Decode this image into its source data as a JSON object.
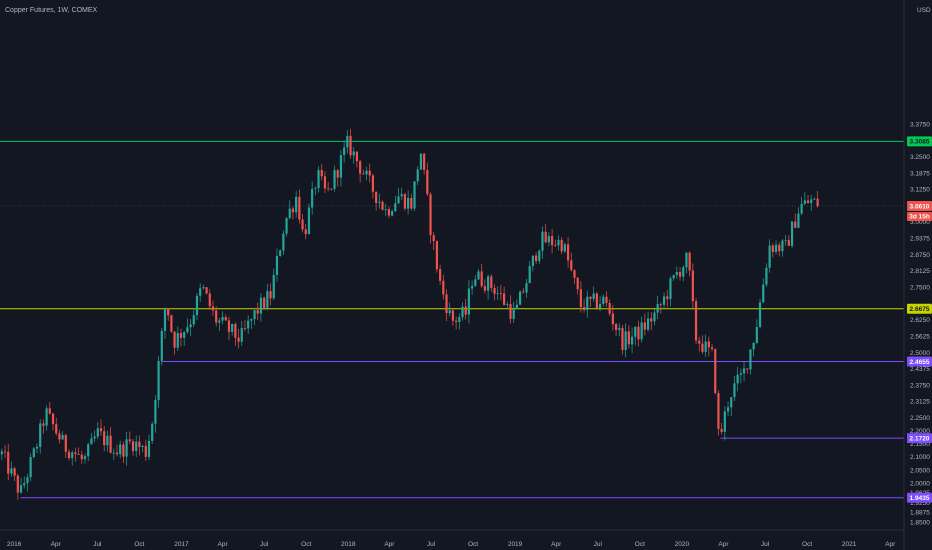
{
  "chart_title": "Copper Futures, 1W, COMEX",
  "currency": "USD",
  "colors": {
    "background": "#131722",
    "up": "#26a69a",
    "down": "#ef5350",
    "text": "#b2b5be",
    "axis_line": "#2a2e39",
    "green_level": "#00c853",
    "yellow_level": "#c8d400",
    "purple_level": "#7c4dff",
    "current_price": "#ef5350"
  },
  "chart_data": {
    "type": "candlestick",
    "title": "Copper Futures, 1W, COMEX",
    "ylim": [
      1.82,
      3.85
    ],
    "xlim": [
      "2015-12-01",
      "2021-05-01"
    ],
    "x_ticks": [
      "2016",
      "Apr",
      "Jul",
      "Oct",
      "2017",
      "Apr",
      "Jul",
      "Oct",
      "2018",
      "Apr",
      "Jul",
      "Oct",
      "2019",
      "Apr",
      "Jul",
      "Oct",
      "2020",
      "Apr",
      "Jul",
      "Oct",
      "2021",
      "Apr"
    ],
    "x_tick_dates": [
      "2016-01-01",
      "2016-04-01",
      "2016-07-01",
      "2016-10-01",
      "2017-01-01",
      "2017-04-01",
      "2017-07-01",
      "2017-10-01",
      "2018-01-01",
      "2018-04-01",
      "2018-07-01",
      "2018-10-01",
      "2019-01-01",
      "2019-04-01",
      "2019-07-01",
      "2019-10-01",
      "2020-01-01",
      "2020-04-01",
      "2020-07-01",
      "2020-10-01",
      "2021-01-01",
      "2021-04-01"
    ],
    "y_ticks": [
      "3.3750",
      "3.2500",
      "3.1875",
      "3.1250",
      "3.0000",
      "2.9375",
      "2.8750",
      "2.8125",
      "2.7500",
      "2.6250",
      "2.5625",
      "2.5000",
      "2.4375",
      "2.3750",
      "2.3125",
      "2.2500",
      "2.2000",
      "2.1500",
      "2.1000",
      "2.0500",
      "2.0000",
      "1.9625",
      "1.9250",
      "1.8875",
      "1.8500"
    ],
    "y_tick_values": [
      3.375,
      3.25,
      3.1875,
      3.125,
      3.0,
      2.9375,
      2.875,
      2.8125,
      2.75,
      2.625,
      2.5625,
      2.5,
      2.4375,
      2.375,
      2.3125,
      2.25,
      2.2,
      2.15,
      2.1,
      2.05,
      2.0,
      1.9625,
      1.925,
      1.8875,
      1.85
    ],
    "horizontal_levels": [
      {
        "value": 3.3085,
        "label": "3.3085",
        "color": "green",
        "start": "2015-12-01"
      },
      {
        "value": 2.6675,
        "label": "2.6675",
        "color": "yellow",
        "start": "2015-12-01"
      },
      {
        "value": 2.4655,
        "label": "2.4655",
        "color": "purple",
        "start": "2016-11-20"
      },
      {
        "value": 2.172,
        "label": "2.1720",
        "color": "purple",
        "start": "2020-03-25"
      },
      {
        "value": 1.9435,
        "label": "1.9435",
        "color": "purple",
        "start": "2016-01-15"
      }
    ],
    "current_price": {
      "value": 3.061,
      "label": "3.0610",
      "countdown": "3d 15h"
    },
    "anchors": [
      [
        "2015-12-05",
        2.11
      ],
      [
        "2016-01-15",
        1.96
      ],
      [
        "2016-02-15",
        2.12
      ],
      [
        "2016-03-10",
        2.27
      ],
      [
        "2016-04-20",
        2.14
      ],
      [
        "2016-05-10",
        2.12
      ],
      [
        "2016-06-01",
        2.08
      ],
      [
        "2016-07-01",
        2.19
      ],
      [
        "2016-08-15",
        2.12
      ],
      [
        "2016-09-15",
        2.16
      ],
      [
        "2016-10-15",
        2.12
      ],
      [
        "2016-10-28",
        2.22
      ],
      [
        "2016-11-15",
        2.5
      ],
      [
        "2016-11-28",
        2.7
      ],
      [
        "2016-12-15",
        2.54
      ],
      [
        "2017-01-20",
        2.62
      ],
      [
        "2017-02-15",
        2.75
      ],
      [
        "2017-03-15",
        2.63
      ],
      [
        "2017-05-10",
        2.55
      ],
      [
        "2017-06-15",
        2.66
      ],
      [
        "2017-07-15",
        2.72
      ],
      [
        "2017-08-15",
        3.0
      ],
      [
        "2017-09-10",
        3.1
      ],
      [
        "2017-09-25",
        2.94
      ],
      [
        "2017-10-25",
        3.18
      ],
      [
        "2017-11-15",
        3.1
      ],
      [
        "2017-12-31",
        3.3
      ],
      [
        "2018-02-15",
        3.15
      ],
      [
        "2018-03-25",
        3.04
      ],
      [
        "2018-04-20",
        3.1
      ],
      [
        "2018-05-20",
        3.07
      ],
      [
        "2018-06-08",
        3.28
      ],
      [
        "2018-06-30",
        2.98
      ],
      [
        "2018-07-20",
        2.77
      ],
      [
        "2018-08-15",
        2.62
      ],
      [
        "2018-09-15",
        2.65
      ],
      [
        "2018-10-01",
        2.8
      ],
      [
        "2018-11-15",
        2.75
      ],
      [
        "2018-12-31",
        2.64
      ],
      [
        "2019-02-25",
        2.93
      ],
      [
        "2019-04-15",
        2.92
      ],
      [
        "2019-05-25",
        2.68
      ],
      [
        "2019-07-15",
        2.7
      ],
      [
        "2019-08-25",
        2.54
      ],
      [
        "2019-10-01",
        2.58
      ],
      [
        "2019-11-10",
        2.66
      ],
      [
        "2019-12-20",
        2.8
      ],
      [
        "2020-01-14",
        2.86
      ],
      [
        "2020-01-31",
        2.56
      ],
      [
        "2020-03-10",
        2.48
      ],
      [
        "2020-03-22",
        2.16
      ],
      [
        "2020-04-15",
        2.34
      ],
      [
        "2020-05-15",
        2.42
      ],
      [
        "2020-06-10",
        2.58
      ],
      [
        "2020-07-10",
        2.91
      ],
      [
        "2020-08-15",
        2.9
      ],
      [
        "2020-09-15",
        3.06
      ],
      [
        "2020-10-10",
        3.08
      ],
      [
        "2020-10-30",
        3.06
      ]
    ]
  }
}
